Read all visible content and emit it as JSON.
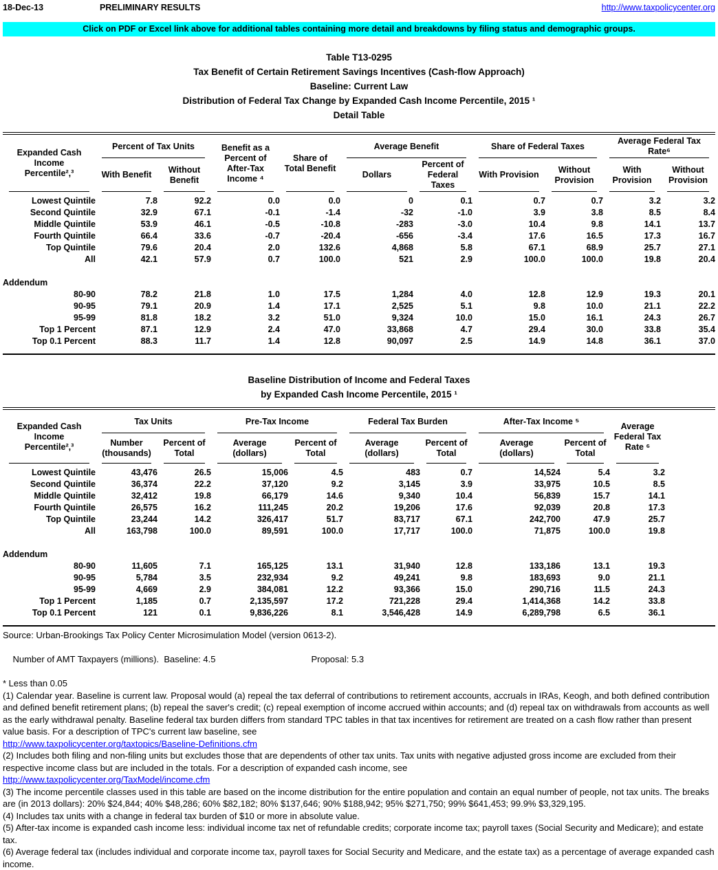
{
  "page": {
    "date": "18-Dec-13",
    "status": "PRELIMINARY RESULTS",
    "site_link": "http://www.taxpolicycenter.org",
    "banner": "Click on PDF or Excel link above for additional tables containing more detail and breakdowns by filing status and demographic groups."
  },
  "title": {
    "line1": "Table T13-0295",
    "line2": "Tax Benefit of Certain Retirement Savings Incentives (Cash-flow Approach)",
    "line3": "Baseline: Current Law",
    "line4": "Distribution of Federal Tax Change by Expanded Cash Income Percentile, 2015 ¹",
    "line5": "Detail Table"
  },
  "table1": {
    "header": {
      "stub": "Expanded Cash Income\nPercentile²,³",
      "group_pct_tax_units": "Percent of Tax Units",
      "col_with_benefit": "With Benefit",
      "col_without_benefit": "Without\nBenefit",
      "col_benefit_pct_ati": "Benefit as a\nPercent of\nAfter-Tax\nIncome ⁴",
      "col_share_total_benefit": "Share of\nTotal Benefit",
      "group_average_benefit": "Average Benefit",
      "col_dollars": "Dollars",
      "col_pct_federal_taxes": "Percent of\nFederal Taxes",
      "group_share_federal_taxes": "Share of Federal Taxes",
      "col_with_provision": "With Provision",
      "col_without_provision": "Without\nProvision",
      "group_avg_federal_tax_rate": "Average Federal Tax Rate⁶",
      "col_rate_with_provision": "With\nProvision",
      "col_rate_without_provision": "Without\nProvision"
    },
    "main_rows": [
      [
        "Lowest Quintile",
        "7.8",
        "92.2",
        "0.0",
        "0.0",
        "0",
        "0.1",
        "0.7",
        "0.7",
        "3.2",
        "3.2"
      ],
      [
        "Second Quintile",
        "32.9",
        "67.1",
        "-0.1",
        "-1.4",
        "-32",
        "-1.0",
        "3.9",
        "3.8",
        "8.5",
        "8.4"
      ],
      [
        "Middle Quintile",
        "53.9",
        "46.1",
        "-0.5",
        "-10.8",
        "-283",
        "-3.0",
        "10.4",
        "9.8",
        "14.1",
        "13.7"
      ],
      [
        "Fourth Quintile",
        "66.4",
        "33.6",
        "-0.7",
        "-20.4",
        "-656",
        "-3.4",
        "17.6",
        "16.5",
        "17.3",
        "16.7"
      ],
      [
        "Top Quintile",
        "79.6",
        "20.4",
        "2.0",
        "132.6",
        "4,868",
        "5.8",
        "67.1",
        "68.9",
        "25.7",
        "27.1"
      ],
      [
        "All",
        "42.1",
        "57.9",
        "0.7",
        "100.0",
        "521",
        "2.9",
        "100.0",
        "100.0",
        "19.8",
        "20.4"
      ]
    ],
    "addendum_label": "Addendum",
    "addendum_rows": [
      [
        "80-90",
        "78.2",
        "21.8",
        "1.0",
        "17.5",
        "1,284",
        "4.0",
        "12.8",
        "12.9",
        "19.3",
        "20.1"
      ],
      [
        "90-95",
        "79.1",
        "20.9",
        "1.4",
        "17.1",
        "2,525",
        "5.1",
        "9.8",
        "10.0",
        "21.1",
        "22.2"
      ],
      [
        "95-99",
        "81.8",
        "18.2",
        "3.2",
        "51.0",
        "9,324",
        "10.0",
        "15.0",
        "16.1",
        "24.3",
        "26.7"
      ],
      [
        "Top 1 Percent",
        "87.1",
        "12.9",
        "2.4",
        "47.0",
        "33,868",
        "4.7",
        "29.4",
        "30.0",
        "33.8",
        "35.4"
      ],
      [
        "Top 0.1 Percent",
        "88.3",
        "11.7",
        "1.4",
        "12.8",
        "90,097",
        "2.5",
        "14.9",
        "14.8",
        "36.1",
        "37.0"
      ]
    ]
  },
  "table2_title": {
    "line1": "Baseline Distribution of Income and Federal Taxes",
    "line2": "by Expanded Cash Income Percentile, 2015 ¹"
  },
  "table2": {
    "header": {
      "stub": "Expanded Cash Income\nPercentile²,³",
      "group_tax_units": "Tax Units",
      "col_number": "Number\n(thousands)",
      "col_percent_total": "Percent of\nTotal",
      "group_pretax_income": "Pre-Tax Income",
      "col_average_dollars": "Average\n(dollars)",
      "group_federal_tax_burden": "Federal Tax Burden",
      "group_aftertax_income": "After-Tax Income ⁵",
      "col_avg_federal_tax_rate": "Average\nFederal Tax\nRate ⁶"
    },
    "main_rows": [
      [
        "Lowest Quintile",
        "43,476",
        "26.5",
        "15,006",
        "4.5",
        "483",
        "0.7",
        "14,524",
        "5.4",
        "3.2"
      ],
      [
        "Second Quintile",
        "36,374",
        "22.2",
        "37,120",
        "9.2",
        "3,145",
        "3.9",
        "33,975",
        "10.5",
        "8.5"
      ],
      [
        "Middle Quintile",
        "32,412",
        "19.8",
        "66,179",
        "14.6",
        "9,340",
        "10.4",
        "56,839",
        "15.7",
        "14.1"
      ],
      [
        "Fourth Quintile",
        "26,575",
        "16.2",
        "111,245",
        "20.2",
        "19,206",
        "17.6",
        "92,039",
        "20.8",
        "17.3"
      ],
      [
        "Top Quintile",
        "23,244",
        "14.2",
        "326,417",
        "51.7",
        "83,717",
        "67.1",
        "242,700",
        "47.9",
        "25.7"
      ],
      [
        "All",
        "163,798",
        "100.0",
        "89,591",
        "100.0",
        "17,717",
        "100.0",
        "71,875",
        "100.0",
        "19.8"
      ]
    ],
    "addendum_label": "Addendum",
    "addendum_rows": [
      [
        "80-90",
        "11,605",
        "7.1",
        "165,125",
        "13.1",
        "31,940",
        "12.8",
        "133,186",
        "13.1",
        "19.3"
      ],
      [
        "90-95",
        "5,784",
        "3.5",
        "232,934",
        "9.2",
        "49,241",
        "9.8",
        "183,693",
        "9.0",
        "21.1"
      ],
      [
        "95-99",
        "4,669",
        "2.9",
        "384,081",
        "12.2",
        "93,366",
        "15.0",
        "290,716",
        "11.5",
        "24.3"
      ],
      [
        "Top 1 Percent",
        "1,185",
        "0.7",
        "2,135,597",
        "17.2",
        "721,228",
        "29.4",
        "1,414,368",
        "14.2",
        "33.8"
      ],
      [
        "Top 0.1 Percent",
        "121",
        "0.1",
        "9,836,226",
        "8.1",
        "3,546,428",
        "14.9",
        "6,289,798",
        "6.5",
        "36.1"
      ]
    ]
  },
  "footer": {
    "source": "Source: Urban-Brookings Tax Policy Center Microsimulation Model (version 0613-2).",
    "amt_label": "Number of AMT Taxpayers (millions).  Baseline: 4.5",
    "amt_proposal": "Proposal: 5.3",
    "less_than": "* Less than 0.05",
    "footnotes": [
      {
        "text": "(1) Calendar year. Baseline is current law. Proposal would (a) repeal the tax deferral of contributions to retirement accounts, accruals in IRAs, Keogh, and both defined contribution and defined benefit retirement plans; (b) repeal the saver's credit; (c) repeal exemption of income accrued within accounts; and (d) repeal tax on withdrawals from accounts as well as the early withdrawal penalty. Baseline federal tax burden differs from standard TPC tables in that tax incentives for retirement are treated on a cash flow rather than present value basis. For a description of TPC's current law baseline, see"
      },
      {
        "link": "http://www.taxpolicycenter.org/taxtopics/Baseline-Definitions.cfm"
      },
      {
        "text": "(2) Includes both filing and non-filing units but excludes those that are dependents of other tax units. Tax units with negative adjusted gross income are excluded from their respective income class but are included in the totals. For a description of expanded cash income, see"
      },
      {
        "link": "http://www.taxpolicycenter.org/TaxModel/income.cfm"
      },
      {
        "text": "(3) The income percentile classes used in this table are based on the income distribution for the entire population and contain an equal number of people, not tax units. The breaks are (in 2013 dollars): 20% $24,844; 40% $48,286; 60% $82,182; 80% $137,646; 90% $188,942; 95% $271,750; 99% $641,453; 99.9% $3,329,195."
      },
      {
        "text": "(4) Includes tax units with a change in federal tax burden of $10 or more in absolute value."
      },
      {
        "text": "(5) After-tax income is expanded cash income less: individual income tax net of refundable credits; corporate income tax; payroll taxes (Social Security and Medicare); and estate tax."
      },
      {
        "text": "(6) Average federal tax (includes individual and corporate income tax, payroll taxes for Social Security and Medicare, and the estate tax) as a percentage of average expanded cash income."
      }
    ]
  }
}
